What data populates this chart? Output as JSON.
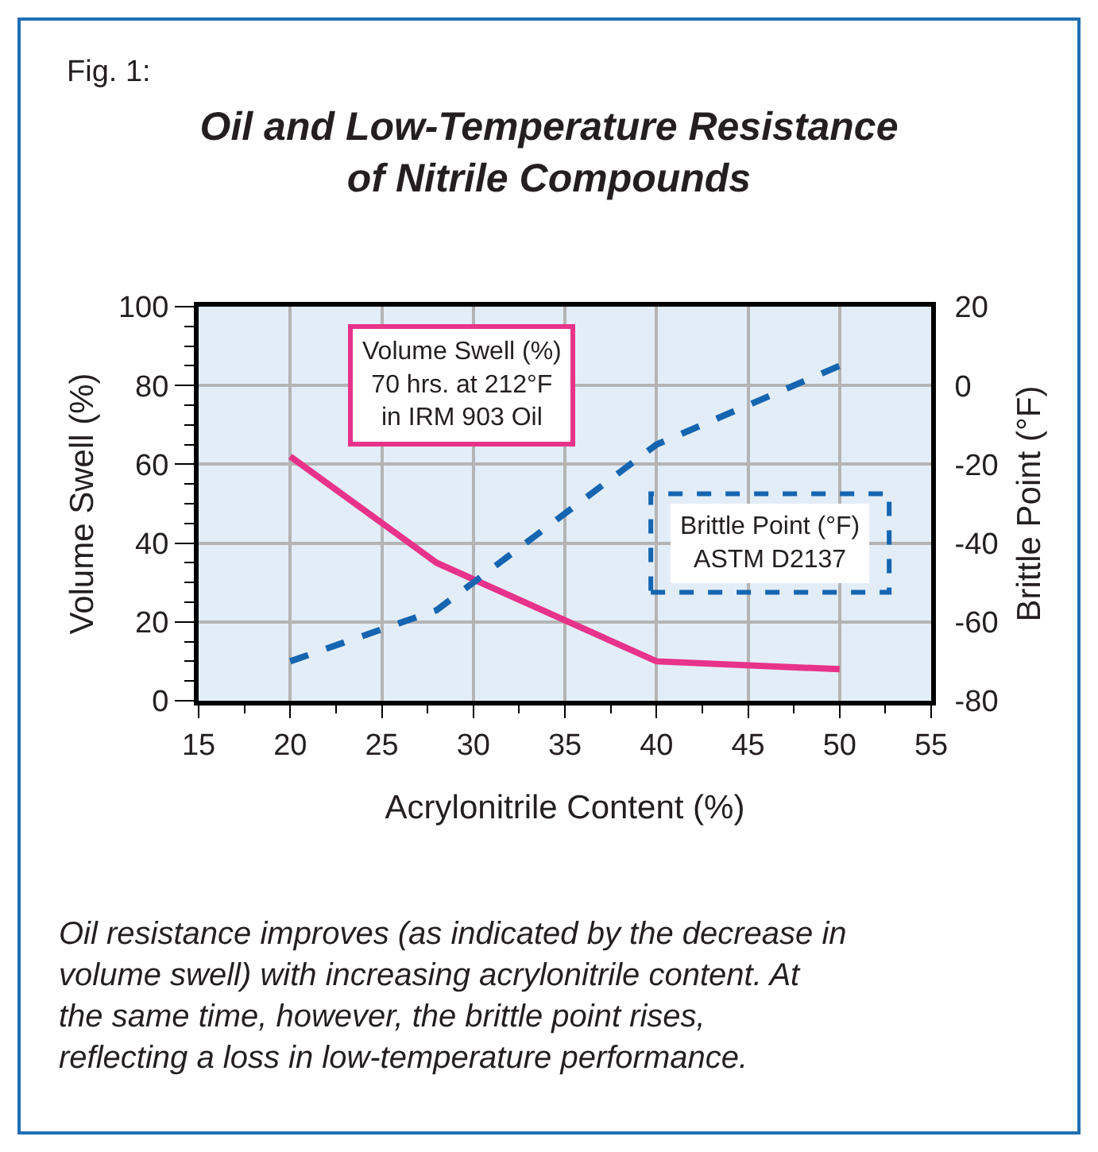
{
  "chart_data": {
    "type": "line",
    "title": "Oil and Low-Temperature Resistance\nof Nitrile Compounds",
    "xlabel": "Acrylonitrile Content (%)",
    "ylabel": "Volume Swell (%)",
    "y2label": "Brittle Point (°F)",
    "x": [
      20,
      28,
      40,
      50
    ],
    "series": [
      {
        "name": "Volume Swell (%)\n70 hrs. at 212°F\nin IRM 903 Oil",
        "color": "#e8338a",
        "values": [
          62,
          35,
          10,
          8
        ],
        "line_style": "solid"
      },
      {
        "name": "Brittle Point (°F)\nASTM D2137",
        "color": "#1565b0",
        "values": [
          -70,
          -57,
          -15,
          5
        ],
        "axis": "y2",
        "line_style": "dashed"
      }
    ],
    "xlim": [
      15,
      55
    ],
    "xticks": [
      15,
      20,
      25,
      30,
      35,
      40,
      45,
      50,
      55
    ],
    "ylim": [
      0,
      100
    ],
    "yticks": [
      0,
      20,
      40,
      60,
      80,
      100
    ],
    "y2lim": [
      -80,
      20
    ],
    "y2ticks": [
      -80,
      -60,
      -40,
      -20,
      0,
      20
    ],
    "grid": true,
    "legend": false,
    "marker": "none",
    "annotations": [
      "Fig. 1:",
      "Oil resistance improves (as indicated by the decrease in volume swell) with increasing acrylonitrile content. At the same time, however, the brittle point rises, reflecting a loss in low-temperature performance."
    ]
  }
}
